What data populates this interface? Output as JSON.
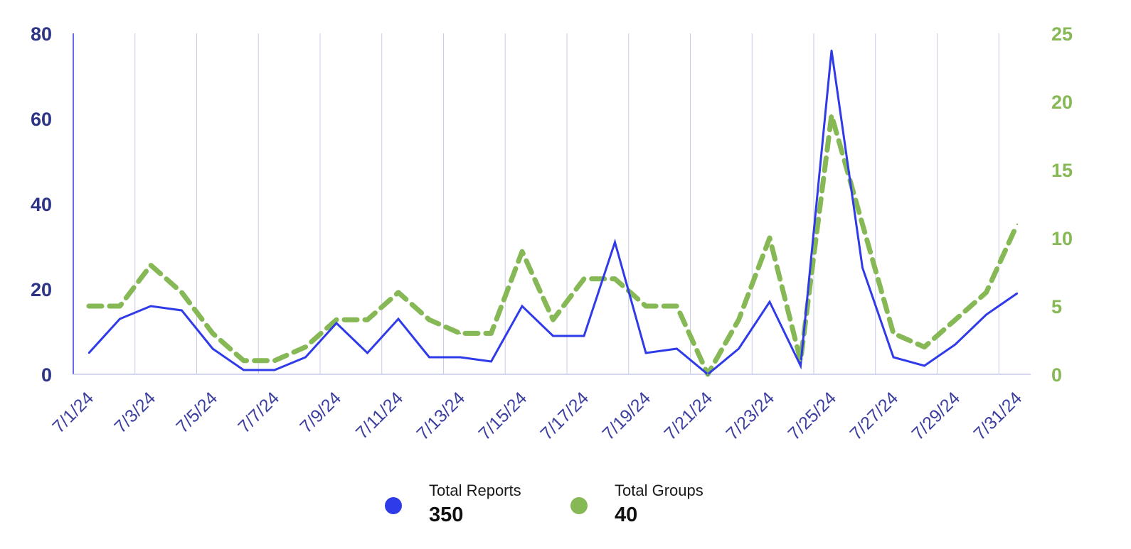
{
  "colors": {
    "reports": "#2f3ae8",
    "groups": "#86b856",
    "left_axis_text": "#2d3486",
    "x_axis_text": "#3c3fa0",
    "gridline": "#c9c9ea"
  },
  "legend": [
    {
      "label": "Total Reports",
      "value": "350",
      "color": "#2f3ae8"
    },
    {
      "label": "Total Groups",
      "value": "40",
      "color": "#86b856"
    }
  ],
  "chart_data": {
    "type": "line",
    "x": [
      "7/1/24",
      "7/2/24",
      "7/3/24",
      "7/4/24",
      "7/5/24",
      "7/6/24",
      "7/7/24",
      "7/8/24",
      "7/9/24",
      "7/10/24",
      "7/11/24",
      "7/12/24",
      "7/13/24",
      "7/14/24",
      "7/15/24",
      "7/16/24",
      "7/17/24",
      "7/18/24",
      "7/19/24",
      "7/20/24",
      "7/21/24",
      "7/22/24",
      "7/23/24",
      "7/24/24",
      "7/25/24",
      "7/26/24",
      "7/27/24",
      "7/28/24",
      "7/29/24",
      "7/30/24",
      "7/31/24"
    ],
    "x_tick_labels": [
      "7/1/24",
      "7/3/24",
      "7/5/24",
      "7/7/24",
      "7/9/24",
      "7/11/24",
      "7/13/24",
      "7/15/24",
      "7/17/24",
      "7/19/24",
      "7/21/24",
      "7/23/24",
      "7/25/24",
      "7/27/24",
      "7/29/24",
      "7/31/24"
    ],
    "series": [
      {
        "name": "Total Reports",
        "axis": "left",
        "style": "solid",
        "values": [
          5,
          13,
          16,
          15,
          6,
          1,
          1,
          4,
          12,
          5,
          13,
          4,
          4,
          3,
          16,
          9,
          9,
          31,
          5,
          6,
          0,
          6,
          17,
          2,
          76,
          25,
          4,
          2,
          7,
          14,
          19
        ]
      },
      {
        "name": "Total Groups",
        "axis": "right",
        "style": "dashed",
        "values": [
          5,
          5,
          8,
          6,
          3,
          1,
          1,
          2,
          4,
          4,
          6,
          4,
          3,
          3,
          9,
          4,
          7,
          7,
          5,
          5,
          0,
          4,
          10,
          1,
          19,
          11,
          3,
          2,
          4,
          6,
          11
        ]
      }
    ],
    "y_left": {
      "ticks": [
        "0",
        "20",
        "40",
        "60",
        "80"
      ],
      "lim": [
        0,
        80
      ]
    },
    "y_right": {
      "ticks": [
        "0",
        "5",
        "10",
        "15",
        "20",
        "25"
      ],
      "lim": [
        0,
        25
      ]
    },
    "grid": "vertical",
    "legend_position": "bottom"
  }
}
